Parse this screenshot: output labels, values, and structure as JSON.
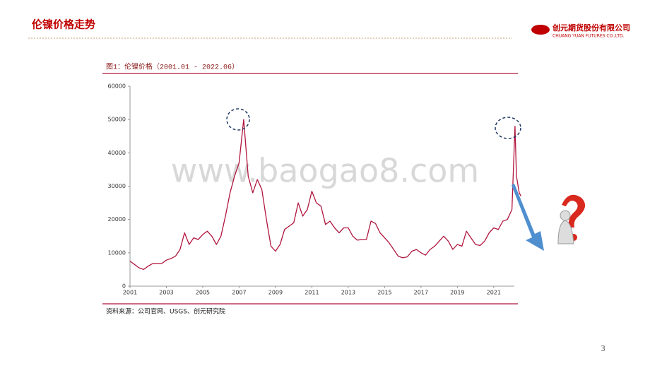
{
  "slide": {
    "title": "伦镍价格走势",
    "company": "创元期货股份有限公司",
    "company_en": "CHUANG YUAN FUTURES CO.,LTD.",
    "caption": "图1：伦镍价格（2001.01 - 2022.06）",
    "source": "资料来源：公司官网、USGS、创元研究院",
    "page": "3",
    "watermark": "www.baogao8.com"
  },
  "chart_data": {
    "type": "line",
    "x": [
      2001.0,
      2001.25,
      2001.5,
      2001.75,
      2002.0,
      2002.25,
      2002.5,
      2002.75,
      2003.0,
      2003.25,
      2003.5,
      2003.75,
      2004.0,
      2004.25,
      2004.5,
      2004.75,
      2005.0,
      2005.25,
      2005.5,
      2005.75,
      2006.0,
      2006.25,
      2006.5,
      2006.75,
      2007.0,
      2007.25,
      2007.5,
      2007.75,
      2008.0,
      2008.25,
      2008.5,
      2008.75,
      2009.0,
      2009.25,
      2009.5,
      2009.75,
      2010.0,
      2010.25,
      2010.5,
      2010.75,
      2011.0,
      2011.25,
      2011.5,
      2011.75,
      2012.0,
      2012.25,
      2012.5,
      2012.75,
      2013.0,
      2013.25,
      2013.5,
      2013.75,
      2014.0,
      2014.25,
      2014.5,
      2014.75,
      2015.0,
      2015.25,
      2015.5,
      2015.75,
      2016.0,
      2016.25,
      2016.5,
      2016.75,
      2017.0,
      2017.25,
      2017.5,
      2017.75,
      2018.0,
      2018.25,
      2018.5,
      2018.75,
      2019.0,
      2019.25,
      2019.5,
      2019.75,
      2020.0,
      2020.25,
      2020.5,
      2020.75,
      2021.0,
      2021.25,
      2021.5,
      2021.75,
      2022.0,
      2022.17,
      2022.25,
      2022.4,
      2022.5
    ],
    "series": [
      {
        "color": "#b0163e",
        "values": [
          7500,
          6500,
          5500,
          5000,
          6000,
          6800,
          6800,
          6800,
          7800,
          8300,
          9000,
          11000,
          16000,
          12500,
          14500,
          14000,
          15500,
          16500,
          15000,
          12500,
          15000,
          21000,
          28000,
          33000,
          37000,
          50000,
          33000,
          28000,
          32000,
          29000,
          20000,
          12000,
          10500,
          12500,
          17000,
          18000,
          19000,
          25000,
          21000,
          23000,
          28500,
          25000,
          24000,
          18500,
          19500,
          17500,
          16000,
          17500,
          17500,
          15000,
          13800,
          14000,
          14000,
          19500,
          18800,
          16000,
          14500,
          13000,
          11000,
          9000,
          8500,
          8800,
          10500,
          11000,
          10000,
          9300,
          11000,
          12000,
          13500,
          15000,
          13500,
          11000,
          12500,
          12000,
          16500,
          14500,
          12500,
          12200,
          13500,
          16000,
          17500,
          17000,
          19500,
          20000,
          23000,
          48000,
          33000,
          28000,
          27000
        ]
      }
    ],
    "xlim": [
      2001,
      2022.6
    ],
    "xticks": [
      2001,
      2003,
      2005,
      2007,
      2009,
      2011,
      2013,
      2015,
      2017,
      2019,
      2021
    ],
    "ylim": [
      0,
      60000
    ],
    "yticks": [
      0,
      10000,
      20000,
      30000,
      40000,
      50000,
      60000
    ]
  }
}
